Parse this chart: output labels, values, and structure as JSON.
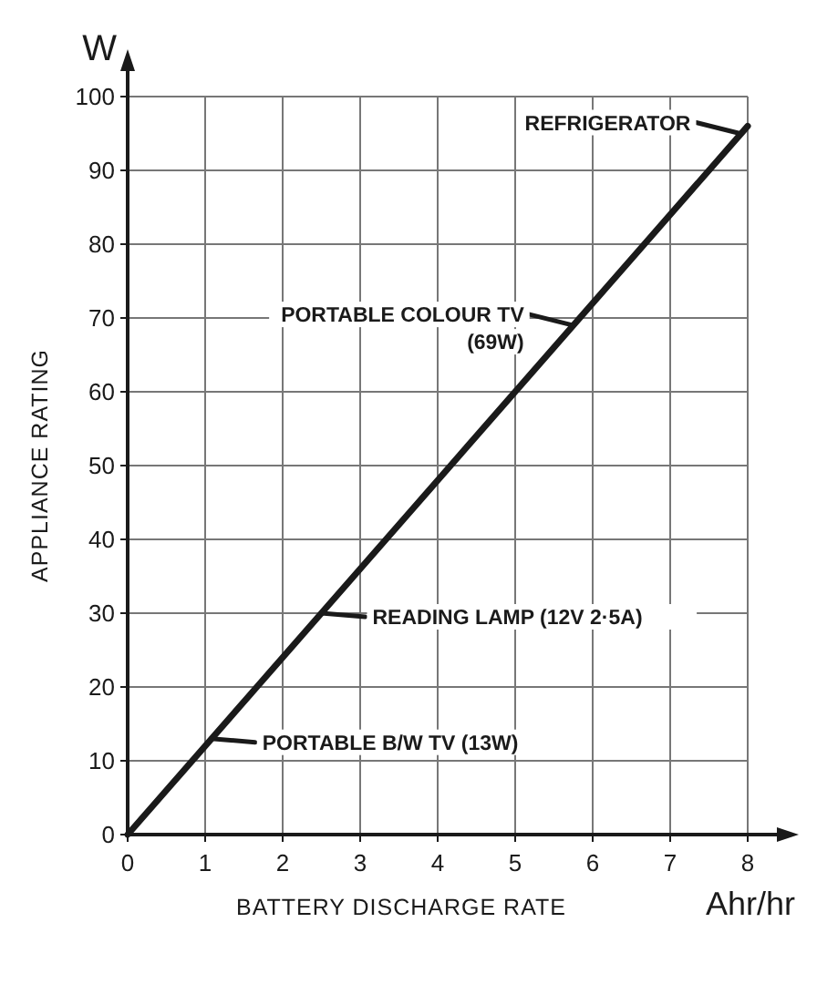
{
  "chart_data": {
    "type": "line",
    "xlabel": "BATTERY DISCHARGE RATE",
    "ylabel": "APPLIANCE RATING",
    "x": [
      0,
      8
    ],
    "series": [
      {
        "color": "#1a1a1a",
        "values": [
          0,
          96
        ]
      }
    ],
    "xlim": [
      0,
      8
    ],
    "ylim": [
      0,
      100
    ],
    "xticks": [
      0,
      1,
      2,
      3,
      4,
      5,
      6,
      7,
      8
    ],
    "yticks": [
      0,
      10,
      20,
      30,
      40,
      50,
      60,
      70,
      80,
      90,
      100
    ],
    "grid": true,
    "marker": "none",
    "line_style": "solid",
    "annotations": [
      "W",
      "Ahr/hr",
      {
        "text": "REFRIGERATOR",
        "x": 7.9,
        "y": 95
      },
      {
        "text": "PORTABLE COLOUR TV\n(69W)",
        "x": 5.75,
        "y": 69
      },
      {
        "text": "READING LAMP (12V 2·5A)",
        "x": 2.5,
        "y": 30
      },
      {
        "text": "PORTABLE B/W TV (13W)",
        "x": 1.08,
        "y": 13
      }
    ]
  }
}
